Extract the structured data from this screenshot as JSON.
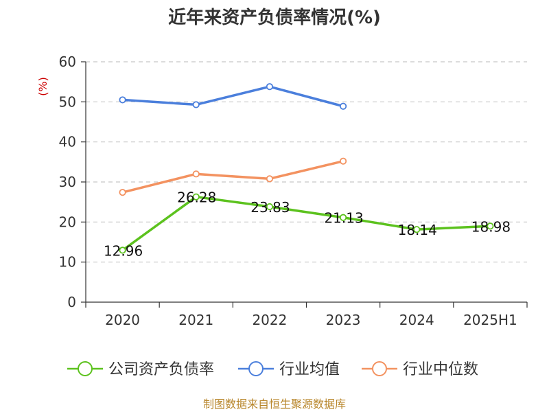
{
  "chart_data": {
    "type": "line",
    "title": "近年来资产负债率情况(%)",
    "ylabel": "(%)",
    "categories": [
      "2020",
      "2021",
      "2022",
      "2023",
      "2024",
      "2025H1"
    ],
    "ylim": [
      0,
      60
    ],
    "yticks": [
      0,
      10,
      20,
      30,
      40,
      50,
      60
    ],
    "grid": true,
    "legend_position": "bottom",
    "series": [
      {
        "name": "公司资产负债率",
        "color": "#5cc21e",
        "show_labels": true,
        "values": [
          12.96,
          26.28,
          23.83,
          21.13,
          18.14,
          18.98
        ],
        "labels": [
          "12.96",
          "26.28",
          "23.83",
          "21.13",
          "18.14",
          "18.98"
        ]
      },
      {
        "name": "行业均值",
        "color": "#4b7fdc",
        "show_labels": false,
        "values": [
          50.5,
          49.3,
          53.8,
          48.9,
          null,
          null
        ]
      },
      {
        "name": "行业中位数",
        "color": "#f39260",
        "show_labels": false,
        "values": [
          27.4,
          32.0,
          30.8,
          35.2,
          null,
          null
        ]
      }
    ]
  },
  "source": "制图数据来自恒生聚源数据库"
}
